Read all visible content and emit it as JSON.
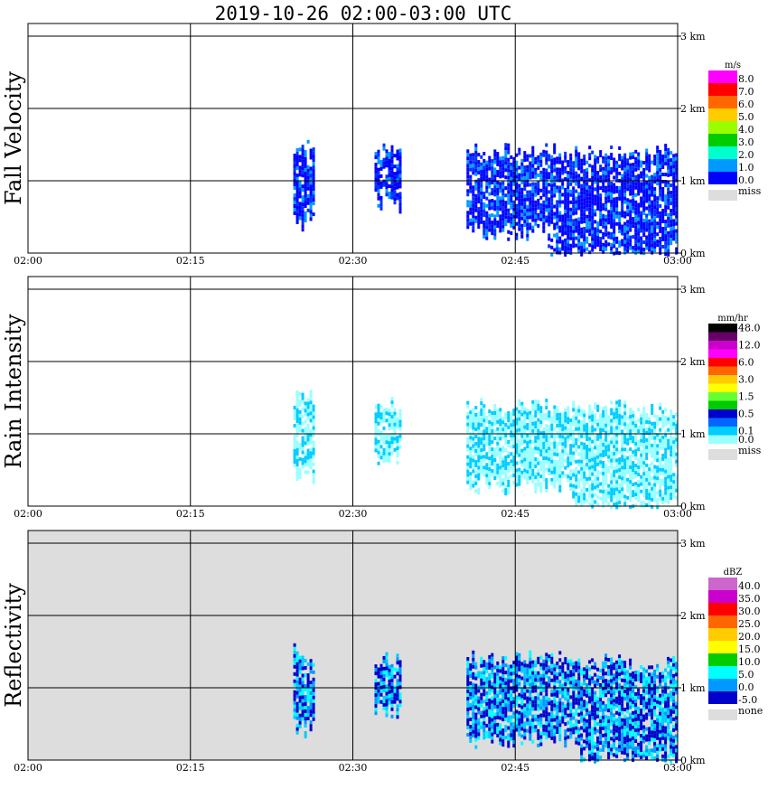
{
  "title": "2019-10-26   02:00-03:00 UTC",
  "x_tick_labels": [
    "02:00",
    "02:15",
    "02:30",
    "02:45",
    "03:00"
  ],
  "y_tick_labels": [
    "0 km",
    "1 km",
    "2 km",
    "3 km"
  ],
  "panels": [
    {
      "id": "fall-velocity",
      "label": "Fall Velocity",
      "unit": "m/s",
      "background": "#ffffff",
      "legend": [
        {
          "label": "8.0",
          "color": "#ff00ff"
        },
        {
          "label": "7.0",
          "color": "#ff0000"
        },
        {
          "label": "6.0",
          "color": "#ff6600"
        },
        {
          "label": "5.0",
          "color": "#ffcc00"
        },
        {
          "label": "4.0",
          "color": "#99ff00"
        },
        {
          "label": "3.0",
          "color": "#00cc00"
        },
        {
          "label": "2.0",
          "color": "#00ffcc"
        },
        {
          "label": "1.0",
          "color": "#0099ff"
        },
        {
          "label": "0.0",
          "color": "#0000ff"
        },
        {
          "label": "miss",
          "color": "#dddddd"
        }
      ]
    },
    {
      "id": "rain-intensity",
      "label": "Rain Intensity",
      "unit": "mm/hr",
      "background": "#ffffff",
      "legend": [
        {
          "label": "48.0",
          "color": "#000000"
        },
        {
          "label": "",
          "color": "#660066"
        },
        {
          "label": "12.0",
          "color": "#cc00cc"
        },
        {
          "label": "",
          "color": "#ff00ff"
        },
        {
          "label": "6.0",
          "color": "#ff0000"
        },
        {
          "label": "",
          "color": "#ff6600"
        },
        {
          "label": "3.0",
          "color": "#ffcc00"
        },
        {
          "label": "",
          "color": "#ffff00"
        },
        {
          "label": "1.5",
          "color": "#66ff33"
        },
        {
          "label": "",
          "color": "#00cc00"
        },
        {
          "label": "0.5",
          "color": "#0000cc"
        },
        {
          "label": "",
          "color": "#0066ff"
        },
        {
          "label": "0.1",
          "color": "#00ccff"
        },
        {
          "label": "0.0",
          "color": "#99ffff"
        },
        {
          "label": "miss",
          "color": "#dddddd"
        }
      ]
    },
    {
      "id": "reflectivity",
      "label": "Reflectivity",
      "unit": "dBZ",
      "background": "#dddddd",
      "legend": [
        {
          "label": "40.0",
          "color": "#cc66cc"
        },
        {
          "label": "35.0",
          "color": "#cc00cc"
        },
        {
          "label": "30.0",
          "color": "#ff0000"
        },
        {
          "label": "25.0",
          "color": "#ff6600"
        },
        {
          "label": "20.0",
          "color": "#ffcc00"
        },
        {
          "label": "15.0",
          "color": "#ffff00"
        },
        {
          "label": "10.0",
          "color": "#00cc00"
        },
        {
          "label": "5.0",
          "color": "#00ffff"
        },
        {
          "label": "0.0",
          "color": "#0099ff"
        },
        {
          "label": "-5.0",
          "color": "#0000cc"
        },
        {
          "label": "none",
          "color": "#dddddd"
        }
      ]
    }
  ],
  "chart_data": [
    {
      "type": "heatmap",
      "title": "2019-10-26   02:00-03:00 UTC",
      "ylabel": "Fall Velocity",
      "unit": "m/s",
      "xlim": [
        "02:00",
        "03:00"
      ],
      "ylim_km": [
        0,
        3.2
      ],
      "grid": true,
      "echoes": [
        {
          "t_start": "02:24.5",
          "t_end": "02:26.5",
          "h_bottom_km": 0.45,
          "h_top_km": 1.45,
          "value": "0.0-1.0"
        },
        {
          "t_start": "02:32.0",
          "t_end": "02:34.5",
          "h_bottom_km": 0.7,
          "h_top_km": 1.35,
          "value": "0.0-1.0"
        },
        {
          "t_start": "02:40.5",
          "t_end": "02:48.0",
          "h_bottom_km": 0.3,
          "h_top_km": 1.35,
          "value": "0.0-1.0"
        },
        {
          "t_start": "02:48.0",
          "t_end": "03:00.0",
          "h_bottom_km": 0.0,
          "h_top_km": 1.35,
          "value": "0.0-1.0"
        }
      ]
    },
    {
      "type": "heatmap",
      "ylabel": "Rain Intensity",
      "unit": "mm/hr",
      "xlim": [
        "02:00",
        "03:00"
      ],
      "ylim_km": [
        0,
        3.2
      ],
      "grid": true,
      "echoes": [
        {
          "t_start": "02:24.5",
          "t_end": "02:26.5",
          "h_bottom_km": 0.45,
          "h_top_km": 1.45,
          "value": "0.0-0.1"
        },
        {
          "t_start": "02:32.0",
          "t_end": "02:34.5",
          "h_bottom_km": 0.7,
          "h_top_km": 1.35,
          "value": "0.0-0.1"
        },
        {
          "t_start": "02:40.5",
          "t_end": "02:50.0",
          "h_bottom_km": 0.3,
          "h_top_km": 1.35,
          "value": "0.0-0.5"
        },
        {
          "t_start": "02:50.0",
          "t_end": "03:00.0",
          "h_bottom_km": 0.0,
          "h_top_km": 1.3,
          "value": "0.0-0.1"
        }
      ]
    },
    {
      "type": "heatmap",
      "ylabel": "Reflectivity",
      "unit": "dBZ",
      "xlim": [
        "02:00",
        "03:00"
      ],
      "ylim_km": [
        0,
        3.2
      ],
      "grid": true,
      "echoes": [
        {
          "t_start": "02:24.5",
          "t_end": "02:26.5",
          "h_bottom_km": 0.45,
          "h_top_km": 1.45,
          "value": "-5.0-0.0"
        },
        {
          "t_start": "02:32.0",
          "t_end": "02:34.5",
          "h_bottom_km": 0.7,
          "h_top_km": 1.35,
          "value": "-5.0-0.0"
        },
        {
          "t_start": "02:40.5",
          "t_end": "02:51.0",
          "h_bottom_km": 0.3,
          "h_top_km": 1.35,
          "value": "-5.0-10.0"
        },
        {
          "t_start": "02:51.0",
          "t_end": "03:00.0",
          "h_bottom_km": 0.0,
          "h_top_km": 1.3,
          "value": "-5.0-5.0"
        }
      ]
    }
  ]
}
